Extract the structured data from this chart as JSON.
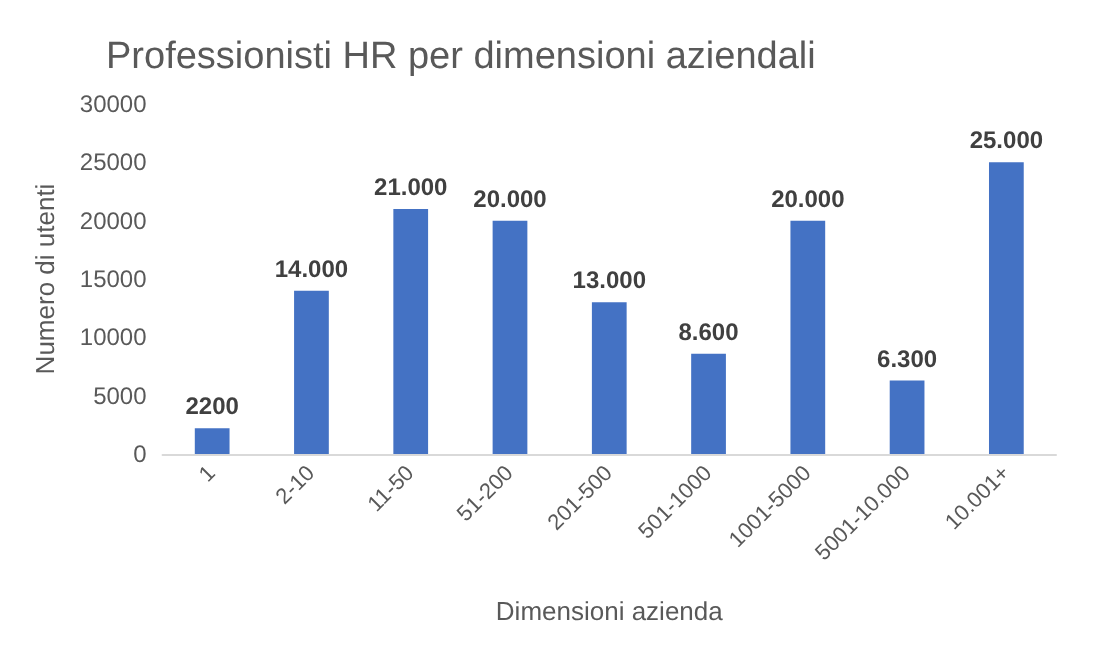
{
  "chart_data": {
    "type": "bar",
    "title": "Professionisti HR per dimensioni aziendali",
    "xlabel": "Dimensioni azienda",
    "ylabel": "Numero di utenti",
    "categories": [
      "1",
      "2-10",
      "11-50",
      "51-200",
      "201-500",
      "501-1000",
      "1001-5000",
      "5001-10.000",
      "10.001+"
    ],
    "values": [
      2200,
      14000,
      21000,
      20000,
      13000,
      8600,
      20000,
      6300,
      25000
    ],
    "value_labels": [
      "2200",
      "14.000",
      "21.000",
      "20.000",
      "13.000",
      "8.600",
      "20.000",
      "6.300",
      "25.000"
    ],
    "color": "#4472c4",
    "ylim": [
      0,
      30000
    ],
    "yticks": [
      0,
      5000,
      10000,
      15000,
      20000,
      25000,
      30000
    ],
    "grid": false
  }
}
